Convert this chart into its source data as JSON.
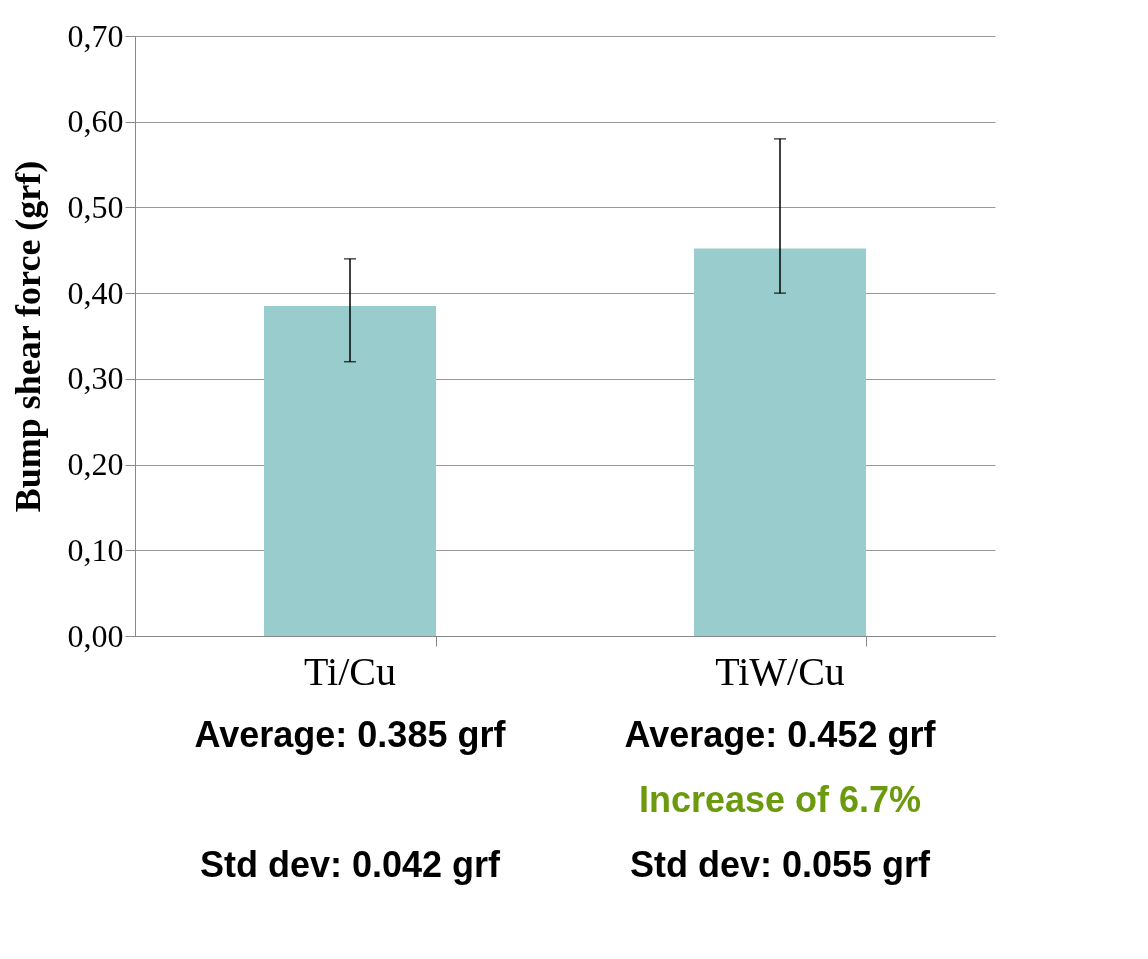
{
  "chart_data": {
    "type": "bar",
    "ylabel": "Bump shear force (grf)",
    "categories": [
      "Ti/Cu",
      "TiW/Cu"
    ],
    "values": [
      0.385,
      0.452
    ],
    "color": "#99cdcd",
    "errors": [
      [
        0.32,
        0.44
      ],
      [
        0.4,
        0.58
      ]
    ],
    "ylim": [
      0,
      0.7
    ],
    "yticks": [
      {
        "value": 0,
        "label": "0,00"
      },
      {
        "value": 0.1,
        "label": "0,10"
      },
      {
        "value": 0.2,
        "label": "0,20"
      },
      {
        "value": 0.3,
        "label": "0,30"
      },
      {
        "value": 0.4,
        "label": "0,40"
      },
      {
        "value": 0.5,
        "label": "0,50"
      },
      {
        "value": 0.6,
        "label": "0,60"
      },
      {
        "value": 0.7,
        "label": "0,70"
      }
    ],
    "grid": "y",
    "annotations": [
      "Average: 0.385 grf",
      "Std dev: 0.042 grf",
      "Average: 0.452 grf",
      "Increase of 6.7%",
      "Std dev: 0.055 grf"
    ]
  }
}
